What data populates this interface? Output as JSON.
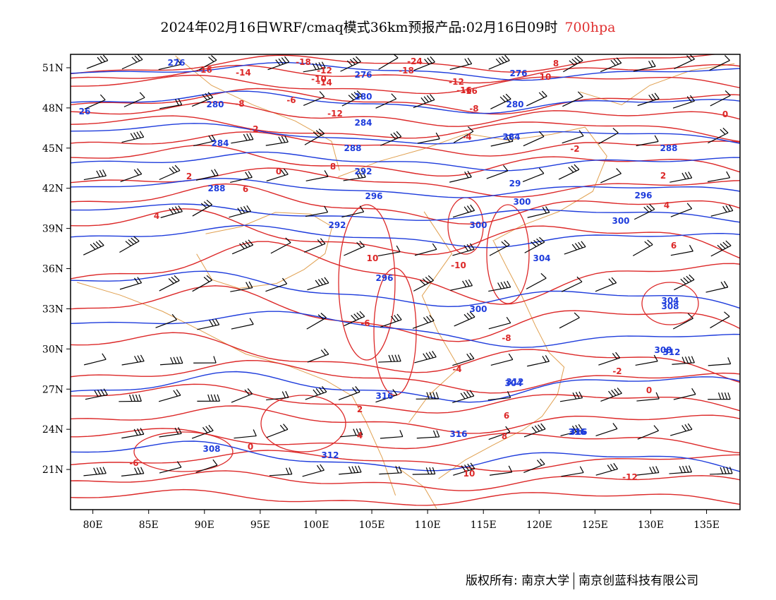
{
  "title": {
    "main": "2024年02月16日WRF/cmaq模式36km预报产品:02月16日09时",
    "level": "700hpa"
  },
  "colors": {
    "height_contour": "#1e3cdc",
    "temp_contour": "#dc2828",
    "border": "#e0a050",
    "wind_barb": "#000000"
  },
  "axes": {
    "lon_ticks": [
      "80E",
      "85E",
      "90E",
      "95E",
      "100E",
      "105E",
      "110E",
      "115E",
      "120E",
      "125E",
      "130E",
      "135E"
    ],
    "lat_ticks": [
      "51N",
      "48N",
      "45N",
      "42N",
      "39N",
      "36N",
      "33N",
      "30N",
      "27N",
      "24N",
      "21N"
    ]
  },
  "height_labels": [
    "276",
    "280",
    "284",
    "288",
    "292",
    "296",
    "300",
    "304",
    "308",
    "312",
    "316",
    "276",
    "280",
    "284",
    "288",
    "292",
    "296",
    "300",
    "304",
    "308",
    "312",
    "316",
    "280",
    "276",
    "284",
    "288",
    "296",
    "300",
    "304",
    "308",
    "312",
    "316",
    "26",
    "29",
    "300",
    "316"
  ],
  "temp_labels": [
    "-18",
    "-16",
    "-14",
    "-12",
    "-10",
    "-8",
    "-6",
    "-2",
    "0",
    "2",
    "4",
    "6",
    "8",
    "10",
    "-24",
    "-12",
    "-16",
    "-8",
    "-4",
    "-2",
    "0",
    "2",
    "4",
    "6",
    "8",
    "10",
    "-18",
    "-16",
    "-14",
    "-12",
    "-10",
    "-8",
    "-6",
    "-4",
    "-2",
    "0",
    "2",
    "4",
    "6",
    "8",
    "10",
    "-12",
    "-6",
    "0"
  ],
  "footer": {
    "rights": "版权所有:",
    "org1": "南京大学",
    "org2": "南京创蓝科技有限公司"
  }
}
